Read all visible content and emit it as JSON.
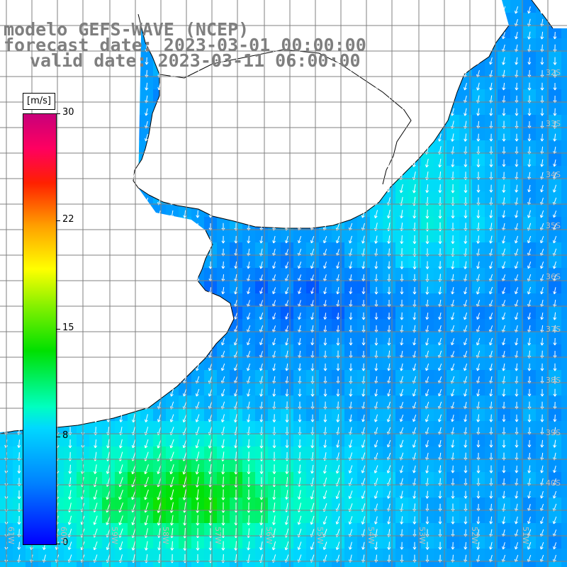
{
  "title": {
    "line1": "modelo GEFS-WAVE (NCEP)",
    "line2": "forecast date: 2023-03-01 00:00:00",
    "line3": "valid date: 2023-03-11 06:00:00"
  },
  "legend": {
    "unit": "[m/s]",
    "ticks": [
      "30",
      "22",
      "15",
      "8",
      "0"
    ],
    "colors": [
      "#0000ff",
      "#0080ff",
      "#00d8ff",
      "#00ffc0",
      "#00e000",
      "#80f000",
      "#ffff00",
      "#ffa000",
      "#ff2000",
      "#ff0060",
      "#c8007a"
    ]
  },
  "map": {
    "variable": "wind speed and direction",
    "land_color": "#ffffff",
    "grid_color": "#808080",
    "lat_labels": [
      "32S",
      "33S",
      "34S",
      "35S",
      "36S",
      "37S",
      "38S",
      "39S",
      "40S"
    ],
    "lon_labels": [
      "61W",
      "60W",
      "59W",
      "58W",
      "57W",
      "56W",
      "55W",
      "54W",
      "53W",
      "52W",
      "51W"
    ],
    "wind_summary": {
      "coastal_strip_ms": 7,
      "open_ocean_east_ms": 4,
      "southwest_maximum_ms": 12,
      "prevailing_direction": "from NNE to SSW"
    }
  }
}
